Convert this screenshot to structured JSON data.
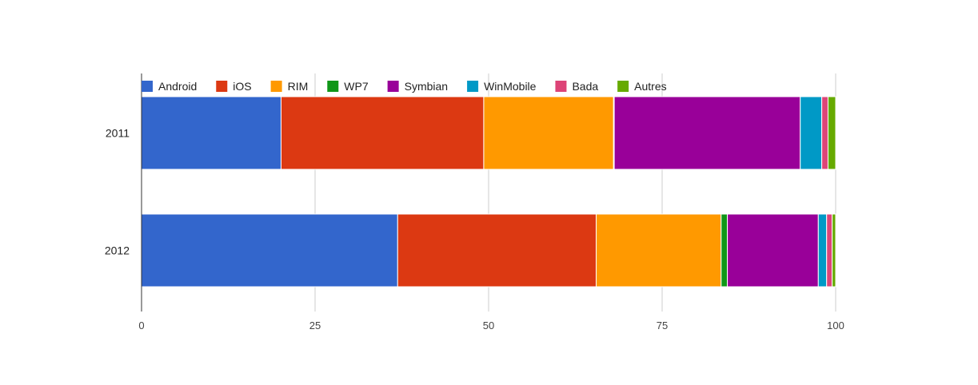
{
  "chart_data": {
    "type": "bar",
    "orientation": "horizontal",
    "stacked": true,
    "categories": [
      "2011",
      "2012"
    ],
    "series": [
      {
        "name": "Android",
        "color": "#3366cc",
        "values": [
          20.1,
          36.9
        ]
      },
      {
        "name": "iOS",
        "color": "#dc3912",
        "values": [
          29.2,
          28.6
        ]
      },
      {
        "name": "RIM",
        "color": "#ff9900",
        "values": [
          18.7,
          18.0
        ]
      },
      {
        "name": "WP7",
        "color": "#109618",
        "values": [
          0.1,
          0.9
        ]
      },
      {
        "name": "Symbian",
        "color": "#990099",
        "values": [
          26.8,
          13.1
        ]
      },
      {
        "name": "WinMobile",
        "color": "#0099c6",
        "values": [
          3.1,
          1.2
        ]
      },
      {
        "name": "Bada",
        "color": "#dd4477",
        "values": [
          0.9,
          0.8
        ]
      },
      {
        "name": "Autres",
        "color": "#66aa00",
        "values": [
          1.1,
          0.5
        ]
      }
    ],
    "xlim": [
      0,
      100
    ],
    "xticks": [
      "0",
      "25",
      "50",
      "75",
      "100"
    ],
    "grid": true,
    "legend": "top",
    "title": "",
    "xlabel": "",
    "ylabel": ""
  }
}
